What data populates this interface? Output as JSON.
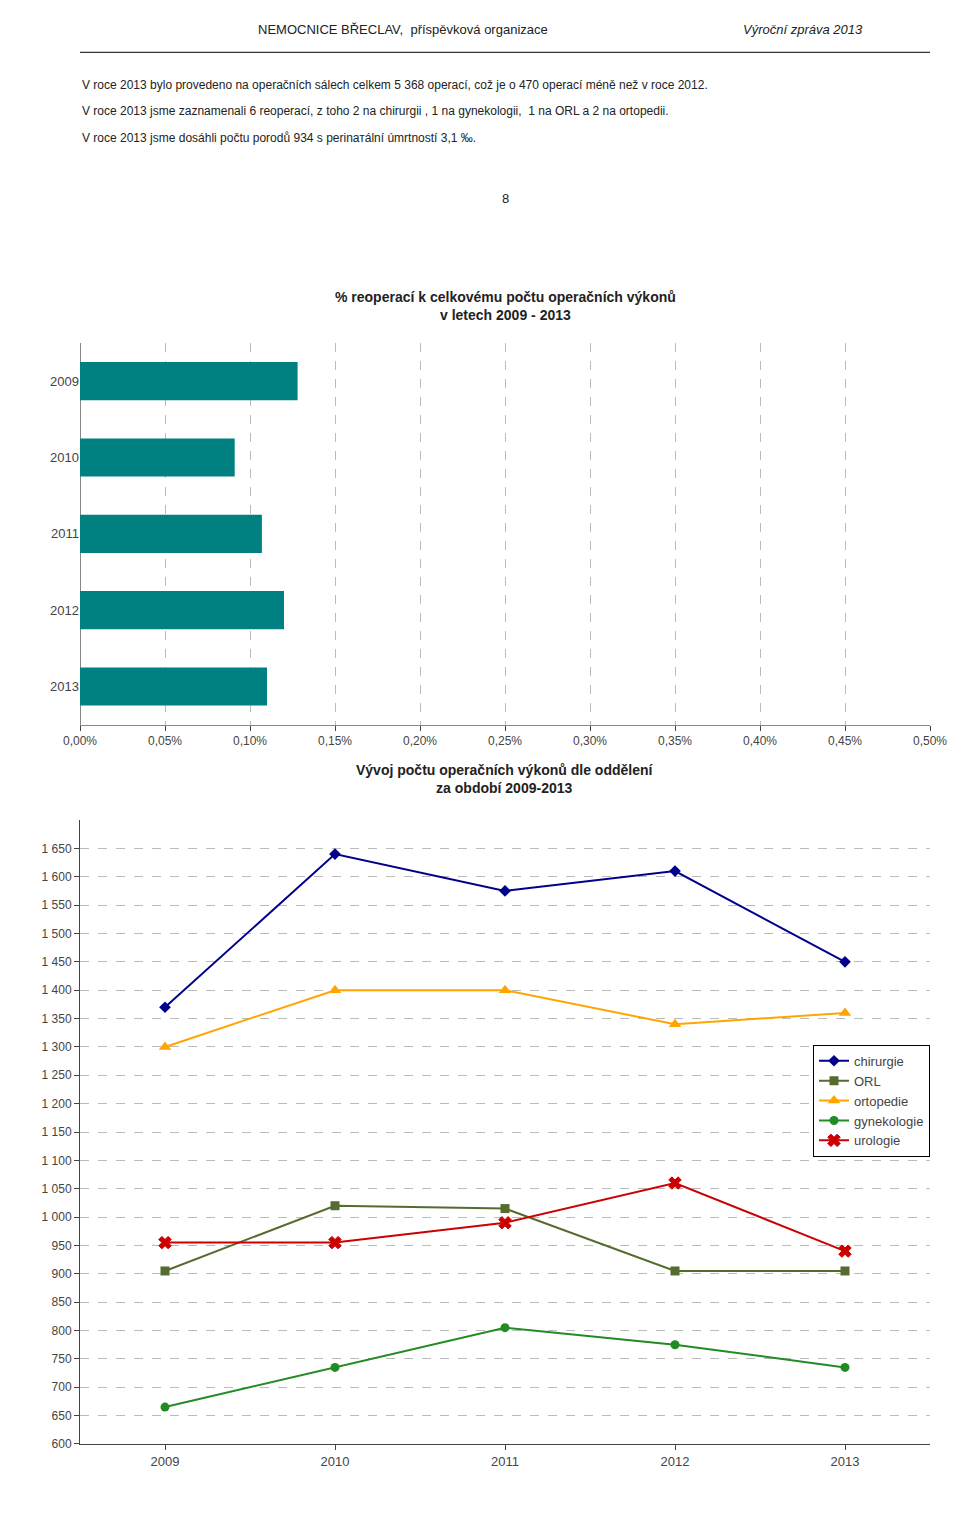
{
  "chart_data": [
    {
      "type": "bar",
      "annotations": [
        "NEMOCNICE BŘECLAV,  příspěvková organizace",
        "Výroční zpráva 2013",
        "V roce 2013 bylo provedeno na operačních sálech celkem 5 368 operací, což je o 470 operací méně než v roce 2012.",
        "V roce 2013 jsme zaznamenali 6 reoperací, z toho 2 na chirurgii , 1 na gynekologii,  1 na ORL a 2 na ortopedii.",
        "V roce 2013 jsme dosáhli počtu porodů 934 s perinатální úmrtností 3,1 ‰.",
        "8"
      ],
      "title": "% reoperací k celkovému počtu operačních výkonů\nv letech 2009 - 2013",
      "orientation": "horizontal",
      "categories": [
        "2013",
        "2012",
        "2011",
        "2010",
        "2009"
      ],
      "values": [
        0.0011,
        0.0012,
        0.00107,
        0.00091,
        0.00128
      ],
      "color": "#008080",
      "xlim": [
        0,
        0.005
      ],
      "xticks": [
        {
          "value": 0.0,
          "label": "0,00%"
        },
        {
          "value": 0.0005,
          "label": "0,05%"
        },
        {
          "value": 0.001,
          "label": "0,10%"
        },
        {
          "value": 0.0015,
          "label": "0,15%"
        },
        {
          "value": 0.002,
          "label": "0,20%"
        },
        {
          "value": 0.0025,
          "label": "0,25%"
        },
        {
          "value": 0.003,
          "label": "0,30%"
        },
        {
          "value": 0.0035,
          "label": "0,35%"
        },
        {
          "value": 0.004,
          "label": "0,40%"
        },
        {
          "value": 0.0045,
          "label": "0,45%"
        },
        {
          "value": 0.005,
          "label": "0,50%"
        }
      ],
      "grid": true
    },
    {
      "type": "line",
      "title": "Vývoj počtu operačních výkonů dle oddělení\nza období 2009-2013",
      "x": [
        2009,
        2010,
        2011,
        2012,
        2013
      ],
      "xlim": [
        2008.5,
        2013.5
      ],
      "xticks": [
        2009,
        2010,
        2011,
        2012,
        2013
      ],
      "ylim": [
        600,
        1700
      ],
      "yticks": [
        600,
        650,
        700,
        750,
        800,
        850,
        900,
        950,
        {
          "value": 1000,
          "label": "1 000"
        },
        {
          "value": 1050,
          "label": "1 050"
        },
        {
          "value": 1100,
          "label": "1 100"
        },
        {
          "value": 1150,
          "label": "1 150"
        },
        {
          "value": 1200,
          "label": "1 200"
        },
        {
          "value": 1250,
          "label": "1 250"
        },
        {
          "value": 1300,
          "label": "1 300"
        },
        {
          "value": 1350,
          "label": "1 350"
        },
        {
          "value": 1400,
          "label": "1 400"
        },
        {
          "value": 1450,
          "label": "1 450"
        },
        {
          "value": 1500,
          "label": "1 500"
        },
        {
          "value": 1550,
          "label": "1 550"
        },
        {
          "value": 1600,
          "label": "1 600"
        },
        {
          "value": 1650,
          "label": "1 650"
        }
      ],
      "grid": true,
      "legend": "right",
      "series": [
        {
          "name": "chirurgie",
          "color": "#00008B",
          "marker": "diamond",
          "values": [
            1370,
            1640,
            1575,
            1610,
            1450
          ]
        },
        {
          "name": "ORL",
          "color": "#556B2F",
          "marker": "square",
          "values": [
            905,
            1020,
            1015,
            905,
            905
          ]
        },
        {
          "name": "ortopedie",
          "color": "#FFA500",
          "marker": "triangle",
          "values": [
            1300,
            1400,
            1400,
            1340,
            1360
          ]
        },
        {
          "name": "gynekologie",
          "color": "#228B22",
          "marker": "circle",
          "values": [
            665,
            735,
            805,
            775,
            735
          ]
        },
        {
          "name": "urologie",
          "color": "#CC0000",
          "marker": "x",
          "values": [
            955,
            955,
            990,
            1060,
            940
          ]
        }
      ]
    }
  ]
}
